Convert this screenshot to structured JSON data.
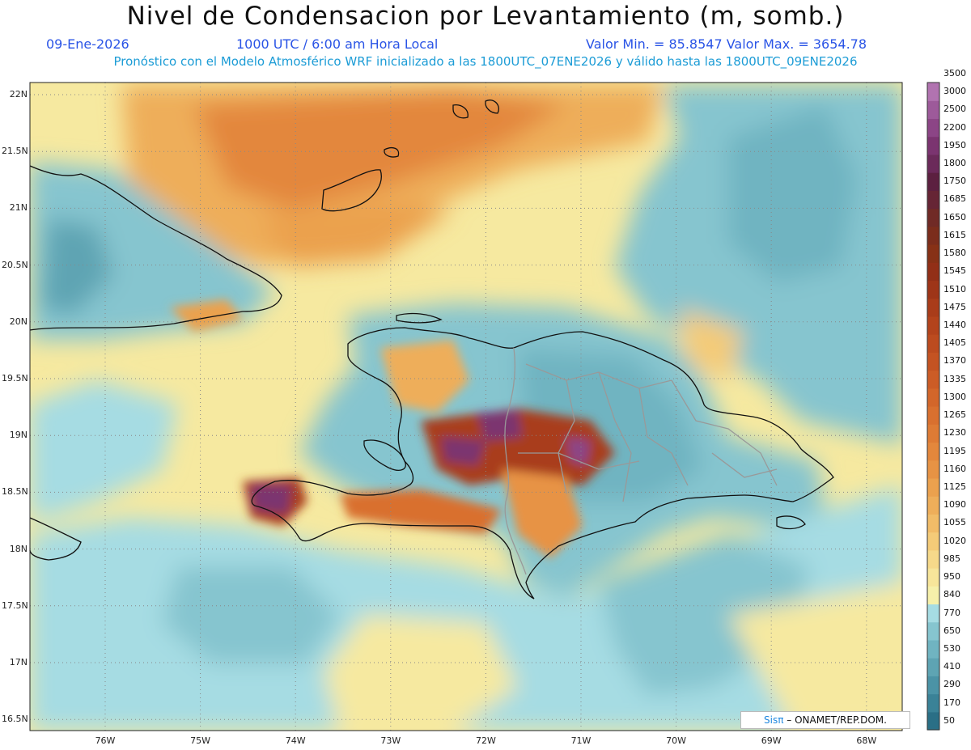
{
  "header": {
    "title": "Nivel de Condensacion por Levantamiento (m, somb.)",
    "date": "09-Ene-2026",
    "time": "1000 UTC / 6:00 am Hora Local",
    "minmax": "Valor Min. = 85.8547  Valor Max. = 3654.78",
    "model_line": "Pronóstico con el Modelo Atmosférico WRF inicializado a las 1800UTC_07ENE2026 y válido hasta las  1800UTC_09ENE2026"
  },
  "axes": {
    "lat_labels": [
      "22N",
      "21.5N",
      "21N",
      "20.5N",
      "20N",
      "19.5N",
      "19N",
      "18.5N",
      "18N",
      "17.5N",
      "17N",
      "16.5N"
    ],
    "lon_labels": [
      "76W",
      "75W",
      "74W",
      "73W",
      "72W",
      "71W",
      "70W",
      "69W",
      "68W"
    ]
  },
  "colorbar": {
    "levels": [
      "50",
      "170",
      "290",
      "410",
      "530",
      "650",
      "770",
      "840",
      "950",
      "985",
      "1020",
      "1055",
      "1090",
      "1125",
      "1160",
      "1195",
      "1230",
      "1265",
      "1300",
      "1335",
      "1370",
      "1405",
      "1440",
      "1475",
      "1510",
      "1545",
      "1580",
      "1615",
      "1650",
      "1685",
      "1750",
      "1800",
      "1950",
      "2200",
      "2500",
      "3000",
      "3500"
    ],
    "colors": [
      "#2a6f86",
      "#3a8297",
      "#4b93a6",
      "#5ea4b3",
      "#70b4c1",
      "#86c5cf",
      "#a6dce3",
      "#f6f0aa",
      "#f7e59a",
      "#f6d98a",
      "#f4cb78",
      "#f1bc68",
      "#eeae5a",
      "#eba14e",
      "#e79344",
      "#e3873c",
      "#de7b35",
      "#d9702f",
      "#d3662a",
      "#cc5c26",
      "#c45322",
      "#bc4b1f",
      "#b3431c",
      "#a93c1a",
      "#9e3518",
      "#922f17",
      "#873116",
      "#7b2d1c",
      "#702a26",
      "#662535",
      "#5c2040",
      "#6b2a5a",
      "#7b3470",
      "#8c4586",
      "#9d5a9a",
      "#b173b0"
    ]
  },
  "credit": {
    "brand": "Sisπ",
    "text": "– ONAMET/REP.DOM."
  }
}
